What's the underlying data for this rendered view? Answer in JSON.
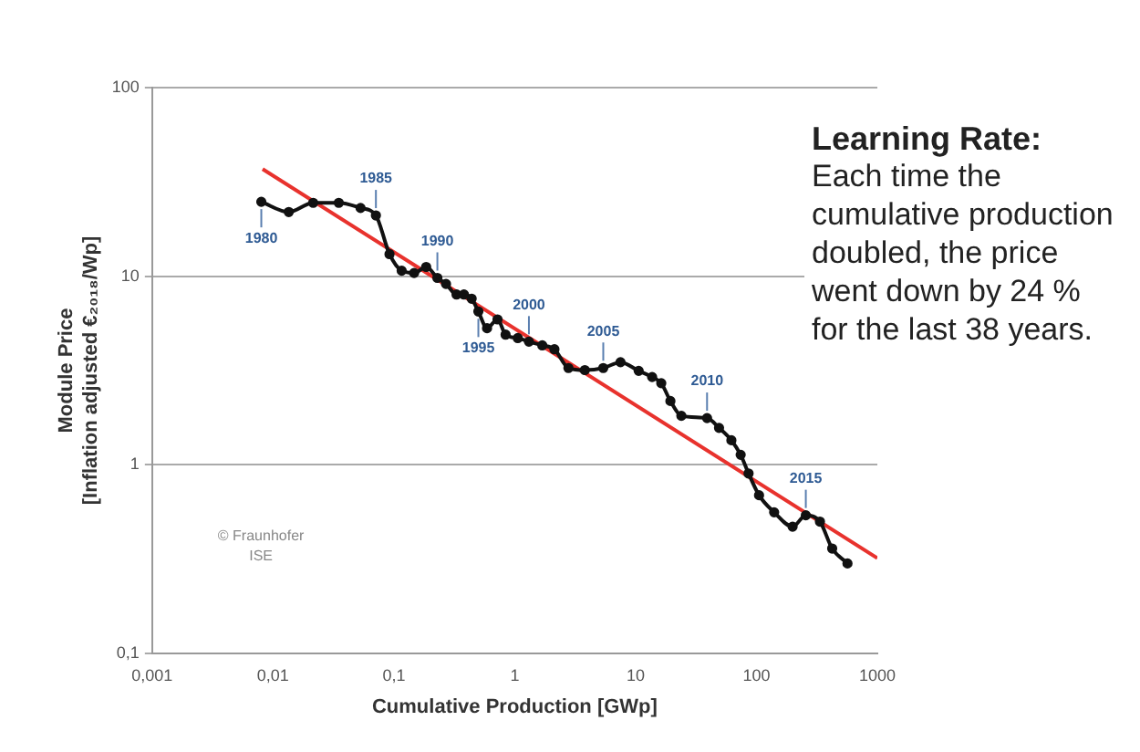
{
  "chart_data": {
    "type": "line",
    "xlabel": "Cumulative Production [GWp]",
    "ylabel": "Module Price\n[Inflation adjusted €₂₀₁₈/Wp]",
    "log": "xy",
    "grid": "y",
    "legend": false,
    "marker": "circle",
    "line_style": "solid",
    "xlim": [
      0.001,
      1000
    ],
    "xticks": [
      {
        "value": 0.001,
        "label": "0,001"
      },
      {
        "value": 0.01,
        "label": "0,01"
      },
      {
        "value": 0.1,
        "label": "0,1"
      },
      1,
      10,
      100,
      1000
    ],
    "ylim": [
      0.1,
      100
    ],
    "yticks": [
      {
        "value": 0.1,
        "label": "0,1"
      },
      1,
      10,
      100
    ],
    "series": [
      {
        "color": "#111111",
        "x": [
          0.008,
          0.0135,
          0.0215,
          0.035,
          0.053,
          0.071,
          0.092,
          0.116,
          0.147,
          0.185,
          0.229,
          0.27,
          0.33,
          0.38,
          0.44,
          0.5,
          0.59,
          0.72,
          0.84,
          1.06,
          1.31,
          1.69,
          2.13,
          2.78,
          3.8,
          5.4,
          7.5,
          10.6,
          13.7,
          16.3,
          19.4,
          23.9,
          39,
          49,
          62,
          74,
          86,
          105,
          140,
          199,
          256,
          335,
          423,
          566
        ],
        "values": [
          24.8,
          21.9,
          24.5,
          24.5,
          23,
          21,
          13.1,
          10.7,
          10.4,
          11.2,
          9.8,
          9.1,
          8.0,
          8.0,
          7.6,
          6.5,
          5.3,
          5.9,
          4.9,
          4.7,
          4.5,
          4.3,
          4.1,
          3.26,
          3.18,
          3.26,
          3.5,
          3.15,
          2.92,
          2.71,
          2.18,
          1.82,
          1.77,
          1.57,
          1.35,
          1.13,
          0.9,
          0.69,
          0.56,
          0.47,
          0.54,
          0.5,
          0.36,
          0.3
        ]
      },
      {
        "type": "line",
        "color": "#e8322d",
        "marker": "none",
        "x": [
          0.0082,
          1000
        ],
        "values": [
          37,
          0.32
        ]
      }
    ],
    "annotations": [
      "Learning Rate:",
      "Each time the cumulative production doubled, the price went down by 24 % for the last 38 years.",
      "© Fraunhofer ISE",
      {
        "text": "1980",
        "x": 0.008,
        "y": 24.8
      },
      {
        "text": "1985",
        "x": 0.071,
        "y": 21
      },
      {
        "text": "1990",
        "x": 0.229,
        "y": 9.8
      },
      {
        "text": "1995",
        "x": 0.5,
        "y": 6.5
      },
      {
        "text": "2000",
        "x": 1.31,
        "y": 4.5
      },
      {
        "text": "2005",
        "x": 5.4,
        "y": 3.26
      },
      {
        "text": "2010",
        "x": 39,
        "y": 1.77
      },
      {
        "text": "2015",
        "x": 256,
        "y": 0.54
      }
    ]
  }
}
